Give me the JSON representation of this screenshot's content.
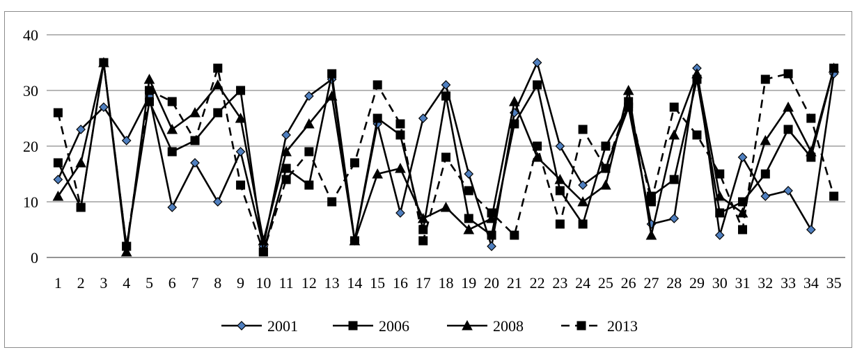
{
  "chart_data": {
    "type": "line",
    "title": "",
    "xlabel": "",
    "ylabel": "",
    "ylim": [
      0,
      40
    ],
    "yticks": [
      0,
      10,
      20,
      30,
      40
    ],
    "grid": "horizontal",
    "legend_position": "bottom",
    "categories": [
      "1",
      "2",
      "3",
      "4",
      "5",
      "6",
      "7",
      "8",
      "9",
      "10",
      "11",
      "12",
      "13",
      "14",
      "15",
      "16",
      "17",
      "18",
      "19",
      "20",
      "21",
      "22",
      "23",
      "24",
      "25",
      "26",
      "27",
      "28",
      "29",
      "30",
      "31",
      "32",
      "33",
      "34",
      "35"
    ],
    "series": [
      {
        "name": "2001",
        "marker": "diamond",
        "dash": "solid",
        "color": "#000000",
        "marker_fill": "#4f7fbf",
        "values": [
          14,
          23,
          27,
          21,
          29,
          9,
          17,
          10,
          19,
          2,
          22,
          29,
          32,
          3,
          24,
          8,
          25,
          31,
          15,
          2,
          26,
          35,
          20,
          13,
          16,
          27,
          6,
          7,
          34,
          4,
          18,
          11,
          12,
          5,
          33
        ]
      },
      {
        "name": "2006",
        "marker": "square",
        "dash": "solid",
        "color": "#000000",
        "marker_fill": "#000000",
        "values": [
          17,
          9,
          35,
          2,
          28,
          19,
          21,
          26,
          30,
          1,
          16,
          13,
          33,
          3,
          25,
          22,
          5,
          29,
          7,
          4,
          24,
          31,
          12,
          6,
          20,
          27,
          11,
          14,
          32,
          8,
          10,
          15,
          23,
          18,
          34
        ]
      },
      {
        "name": "2008",
        "marker": "triangle",
        "dash": "solid",
        "color": "#000000",
        "marker_fill": "#000000",
        "values": [
          11,
          17,
          35,
          1,
          32,
          23,
          26,
          31,
          25,
          3,
          19,
          24,
          29,
          3,
          15,
          16,
          7,
          9,
          5,
          7,
          28,
          18,
          14,
          10,
          13,
          30,
          4,
          22,
          33,
          11,
          8,
          21,
          27,
          19,
          34
        ]
      },
      {
        "name": "2013",
        "marker": "square",
        "dash": "dashed",
        "color": "#000000",
        "marker_fill": "#000000",
        "values": [
          26,
          9,
          35,
          2,
          30,
          28,
          21,
          34,
          13,
          1,
          14,
          19,
          10,
          17,
          31,
          24,
          3,
          18,
          12,
          8,
          4,
          20,
          6,
          23,
          16,
          28,
          10,
          27,
          22,
          15,
          5,
          32,
          33,
          25,
          11
        ]
      }
    ]
  }
}
